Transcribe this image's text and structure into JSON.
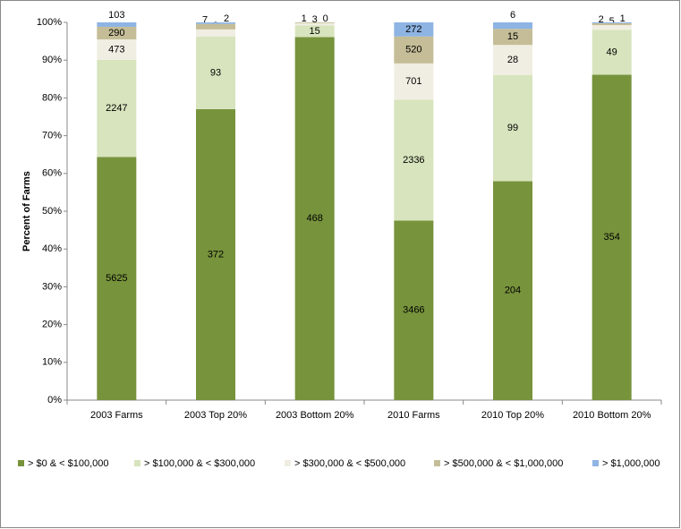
{
  "chart_data": {
    "type": "bar",
    "stack": "percent",
    "y_label": "Percent of Farms",
    "categories": [
      "2003 Farms",
      "2003 Top 20%",
      "2003 Bottom 20%",
      "2010 Farms",
      "2010 Top 20%",
      "2010 Bottom 20%"
    ],
    "series": [
      {
        "name": "> $0 & < $100,000",
        "color": "#77933c",
        "values": [
          5625,
          372,
          468,
          3466,
          204,
          354
        ]
      },
      {
        "name": "> $100,000 & < $300,000",
        "color": "#d7e4bd",
        "values": [
          2247,
          93,
          15,
          2336,
          99,
          49
        ]
      },
      {
        "name": "> $300,000 & < $500,000",
        "color": "#f0eee2",
        "values": [
          473,
          9,
          3,
          701,
          28,
          5
        ]
      },
      {
        "name": "> $500,000 & < $1,000,000",
        "color": "#c4bd97",
        "values": [
          290,
          7,
          1,
          520,
          15,
          2
        ]
      },
      {
        "name": "> $1,000,000",
        "color": "#8eb4e3",
        "values": [
          103,
          2,
          0,
          272,
          6,
          1
        ]
      }
    ],
    "ylim": [
      0,
      100
    ],
    "yticks": [
      {
        "value": 0,
        "label": "0%"
      },
      {
        "value": 10,
        "label": "10%"
      },
      {
        "value": 20,
        "label": "20%"
      },
      {
        "value": 30,
        "label": "30%"
      },
      {
        "value": 40,
        "label": "40%"
      },
      {
        "value": 50,
        "label": "50%"
      },
      {
        "value": 60,
        "label": "60%"
      },
      {
        "value": 70,
        "label": "70%"
      },
      {
        "value": 80,
        "label": "80%"
      },
      {
        "value": 90,
        "label": "90%"
      },
      {
        "value": 100,
        "label": "100%"
      }
    ],
    "legend": "bottom"
  }
}
